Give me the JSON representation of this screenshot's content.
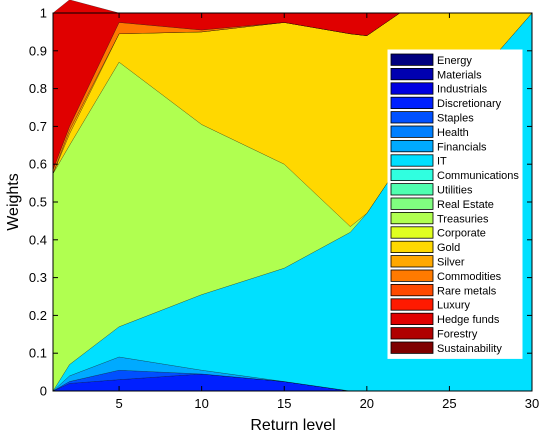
{
  "chart_data": {
    "type": "area",
    "xlabel": "Return level",
    "ylabel": "Weights",
    "xlim": [
      1,
      30
    ],
    "ylim": [
      0,
      1
    ],
    "xticks": [
      5,
      10,
      15,
      20,
      25,
      30
    ],
    "yticks": [
      0,
      0.1,
      0.2,
      0.3,
      0.4,
      0.5,
      0.6,
      0.7,
      0.8,
      0.9,
      1
    ],
    "ytick_labels": [
      "0",
      "0.1",
      "0.2",
      "0.3",
      "0.4",
      "0.5",
      "0.6",
      "0.7",
      "0.8",
      "0.9",
      "1"
    ],
    "legend_position": "right, upper",
    "stacked": true,
    "x": [
      1,
      2,
      5,
      10,
      15,
      19,
      20,
      22,
      30
    ],
    "series": [
      {
        "name": "Energy",
        "color": "#00007f",
        "values": [
          0,
          0,
          0,
          0,
          0,
          0,
          0,
          0,
          0
        ]
      },
      {
        "name": "Materials",
        "color": "#0000b0",
        "values": [
          0,
          0,
          0,
          0,
          0,
          0,
          0,
          0,
          0
        ]
      },
      {
        "name": "Industrials",
        "color": "#0000e0",
        "values": [
          0,
          0,
          0,
          0,
          0,
          0,
          0,
          0,
          0
        ]
      },
      {
        "name": "Discretionary",
        "color": "#0020ff",
        "values": [
          0,
          0.02,
          0.03,
          0.045,
          0.025,
          0,
          0,
          0,
          0
        ]
      },
      {
        "name": "Staples",
        "color": "#0050ff",
        "values": [
          0,
          0.005,
          0.025,
          0,
          0,
          0,
          0,
          0,
          0
        ]
      },
      {
        "name": "Health",
        "color": "#0080ff",
        "values": [
          0,
          0,
          0,
          0,
          0,
          0,
          0,
          0,
          0
        ]
      },
      {
        "name": "Financials",
        "color": "#00aaff",
        "values": [
          0,
          0.015,
          0.035,
          0.01,
          0,
          0,
          0,
          0,
          0
        ]
      },
      {
        "name": "IT",
        "color": "#00e0ff",
        "values": [
          0,
          0.03,
          0.08,
          0.2,
          0.3,
          0.42,
          0.47,
          0.6,
          1
        ]
      },
      {
        "name": "Communications",
        "color": "#30ffe0",
        "values": [
          0,
          0,
          0,
          0,
          0,
          0,
          0,
          0,
          0
        ]
      },
      {
        "name": "Utilities",
        "color": "#50ffb0",
        "values": [
          0,
          0,
          0,
          0,
          0,
          0,
          0,
          0,
          0
        ]
      },
      {
        "name": "Real Estate",
        "color": "#80ff80",
        "values": [
          0,
          0,
          0,
          0,
          0,
          0,
          0,
          0,
          0
        ]
      },
      {
        "name": "Treasuries",
        "color": "#b0ff50",
        "values": [
          0.575,
          0.58,
          0.7,
          0.45,
          0.275,
          0.015,
          0,
          0,
          0
        ]
      },
      {
        "name": "Corporate",
        "color": "#e0ff20",
        "values": [
          0,
          0,
          0,
          0,
          0,
          0,
          0,
          0,
          0
        ]
      },
      {
        "name": "Gold",
        "color": "#ffd800",
        "values": [
          0,
          0.03,
          0.075,
          0.245,
          0.375,
          0.51,
          0.47,
          0.4,
          0
        ]
      },
      {
        "name": "Silver",
        "color": "#ffa800",
        "values": [
          0,
          0.01,
          0,
          0,
          0,
          0,
          0,
          0,
          0
        ]
      },
      {
        "name": "Commodities",
        "color": "#ff7a00",
        "values": [
          0.01,
          0.01,
          0.03,
          0.005,
          0,
          0,
          0,
          0,
          0
        ]
      },
      {
        "name": "Rare metals",
        "color": "#ff4a00",
        "values": [
          0,
          0,
          0,
          0,
          0,
          0,
          0,
          0,
          0
        ]
      },
      {
        "name": "Luxury",
        "color": "#ff1a00",
        "values": [
          0,
          0,
          0,
          0,
          0,
          0,
          0,
          0,
          0
        ]
      },
      {
        "name": "Hedge funds",
        "color": "#e00000",
        "values": [
          0.415,
          0.335,
          0.025,
          0.045,
          0.025,
          0.055,
          0.06,
          0,
          0
        ]
      },
      {
        "name": "Forestry",
        "color": "#b00000",
        "values": [
          0,
          0,
          0,
          0,
          0,
          0,
          0,
          0,
          0
        ]
      },
      {
        "name": "Sustainability",
        "color": "#7f0000",
        "values": [
          0,
          0,
          0,
          0,
          0,
          0,
          0,
          0,
          0
        ]
      }
    ]
  }
}
